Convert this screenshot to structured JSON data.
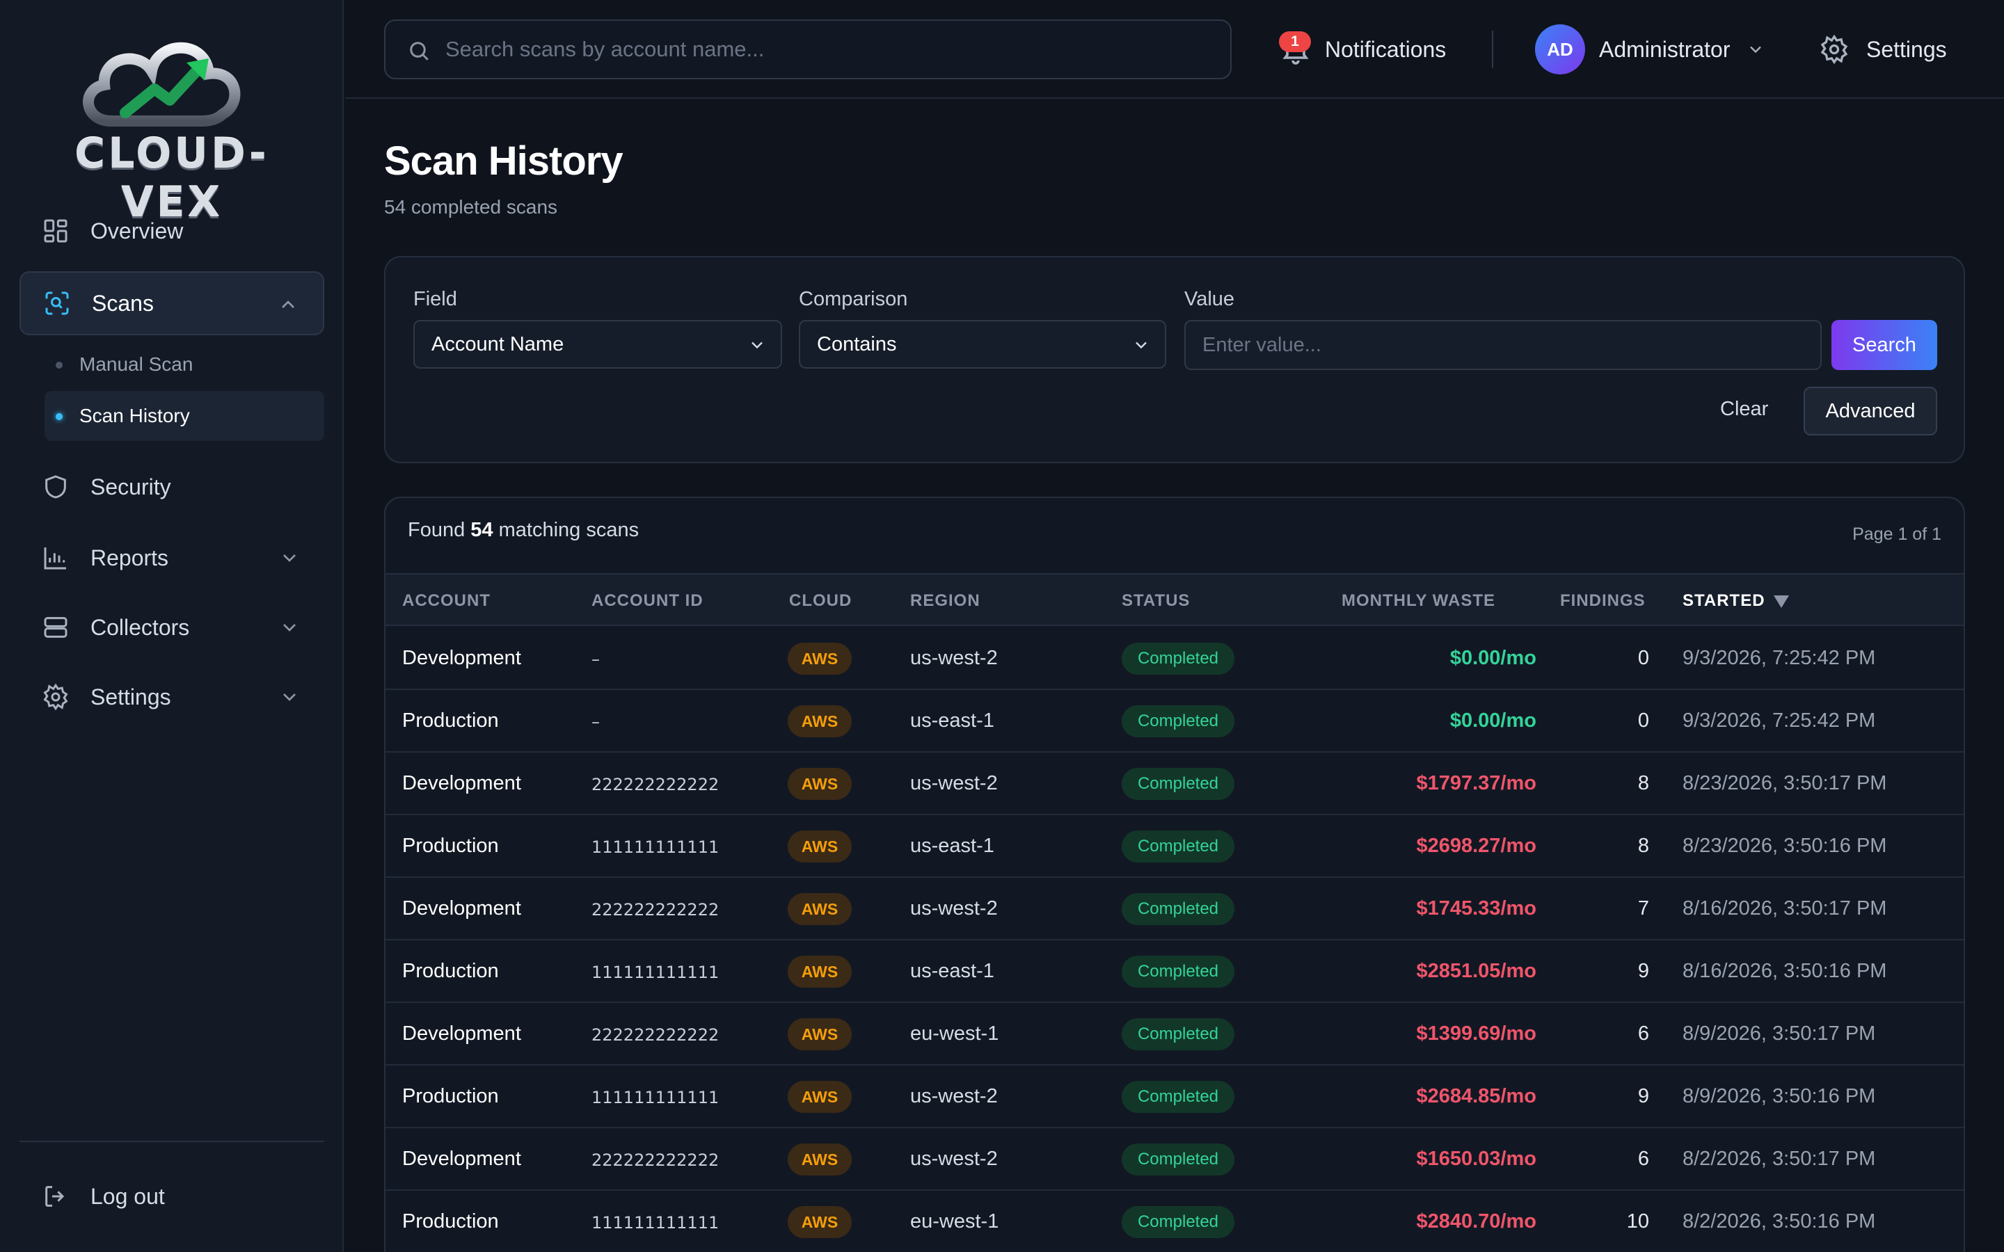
{
  "brand": {
    "name": "CLOUD-VEX"
  },
  "sidebar": {
    "items": [
      {
        "label": "Overview",
        "icon": "grid-icon"
      },
      {
        "label": "Scans",
        "icon": "scan-icon"
      },
      {
        "label": "Security",
        "icon": "shield-icon"
      },
      {
        "label": "Reports",
        "icon": "bar-chart-icon"
      },
      {
        "label": "Collectors",
        "icon": "server-icon"
      },
      {
        "label": "Settings",
        "icon": "gear-icon"
      }
    ],
    "sub_items": [
      {
        "label": "Manual Scan"
      },
      {
        "label": "Scan History"
      }
    ],
    "logout_label": "Log out"
  },
  "topbar": {
    "search_placeholder": "Search scans by account name...",
    "notifications_label": "Notifications",
    "notifications_count": "1",
    "user_initials": "AD",
    "user_name": "Administrator",
    "settings_label": "Settings"
  },
  "page": {
    "title": "Scan History",
    "subtitle": "54 completed scans"
  },
  "filter": {
    "field_label": "Field",
    "field_value": "Account Name",
    "comparison_label": "Comparison",
    "comparison_value": "Contains",
    "value_label": "Value",
    "value_placeholder": "Enter value...",
    "search_button": "Search",
    "clear_button": "Clear",
    "advanced_button": "Advanced"
  },
  "results": {
    "found_prefix": "Found",
    "found_count": "54",
    "found_suffix": "matching scans",
    "page_info": "Page 1 of 1",
    "columns": [
      "ACCOUNT",
      "ACCOUNT ID",
      "CLOUD",
      "REGION",
      "STATUS",
      "MONTHLY WASTE",
      "FINDINGS",
      "STARTED"
    ],
    "rows": [
      {
        "account": "Development",
        "account_id": "–",
        "cloud": "AWS",
        "region": "us-west-2",
        "status": "Completed",
        "waste": "$0.00/mo",
        "findings": "0",
        "started": "9/3/2026, 7:25:42 PM"
      },
      {
        "account": "Production",
        "account_id": "–",
        "cloud": "AWS",
        "region": "us-east-1",
        "status": "Completed",
        "waste": "$0.00/mo",
        "findings": "0",
        "started": "9/3/2026, 7:25:42 PM"
      },
      {
        "account": "Development",
        "account_id": "222222222222",
        "cloud": "AWS",
        "region": "us-west-2",
        "status": "Completed",
        "waste": "$1797.37/mo",
        "findings": "8",
        "started": "8/23/2026, 3:50:17 PM"
      },
      {
        "account": "Production",
        "account_id": "111111111111",
        "cloud": "AWS",
        "region": "us-east-1",
        "status": "Completed",
        "waste": "$2698.27/mo",
        "findings": "8",
        "started": "8/23/2026, 3:50:16 PM"
      },
      {
        "account": "Development",
        "account_id": "222222222222",
        "cloud": "AWS",
        "region": "us-west-2",
        "status": "Completed",
        "waste": "$1745.33/mo",
        "findings": "7",
        "started": "8/16/2026, 3:50:17 PM"
      },
      {
        "account": "Production",
        "account_id": "111111111111",
        "cloud": "AWS",
        "region": "us-east-1",
        "status": "Completed",
        "waste": "$2851.05/mo",
        "findings": "9",
        "started": "8/16/2026, 3:50:16 PM"
      },
      {
        "account": "Development",
        "account_id": "222222222222",
        "cloud": "AWS",
        "region": "eu-west-1",
        "status": "Completed",
        "waste": "$1399.69/mo",
        "findings": "6",
        "started": "8/9/2026, 3:50:17 PM"
      },
      {
        "account": "Production",
        "account_id": "111111111111",
        "cloud": "AWS",
        "region": "us-west-2",
        "status": "Completed",
        "waste": "$2684.85/mo",
        "findings": "9",
        "started": "8/9/2026, 3:50:16 PM"
      },
      {
        "account": "Development",
        "account_id": "222222222222",
        "cloud": "AWS",
        "region": "us-west-2",
        "status": "Completed",
        "waste": "$1650.03/mo",
        "findings": "6",
        "started": "8/2/2026, 3:50:17 PM"
      },
      {
        "account": "Production",
        "account_id": "111111111111",
        "cloud": "AWS",
        "region": "eu-west-1",
        "status": "Completed",
        "waste": "$2840.70/mo",
        "findings": "10",
        "started": "8/2/2026, 3:50:16 PM"
      }
    ]
  },
  "colors": {
    "waste_zero": "#34d399",
    "waste_positive": "#f0556b",
    "accent": "#38bdf8"
  }
}
